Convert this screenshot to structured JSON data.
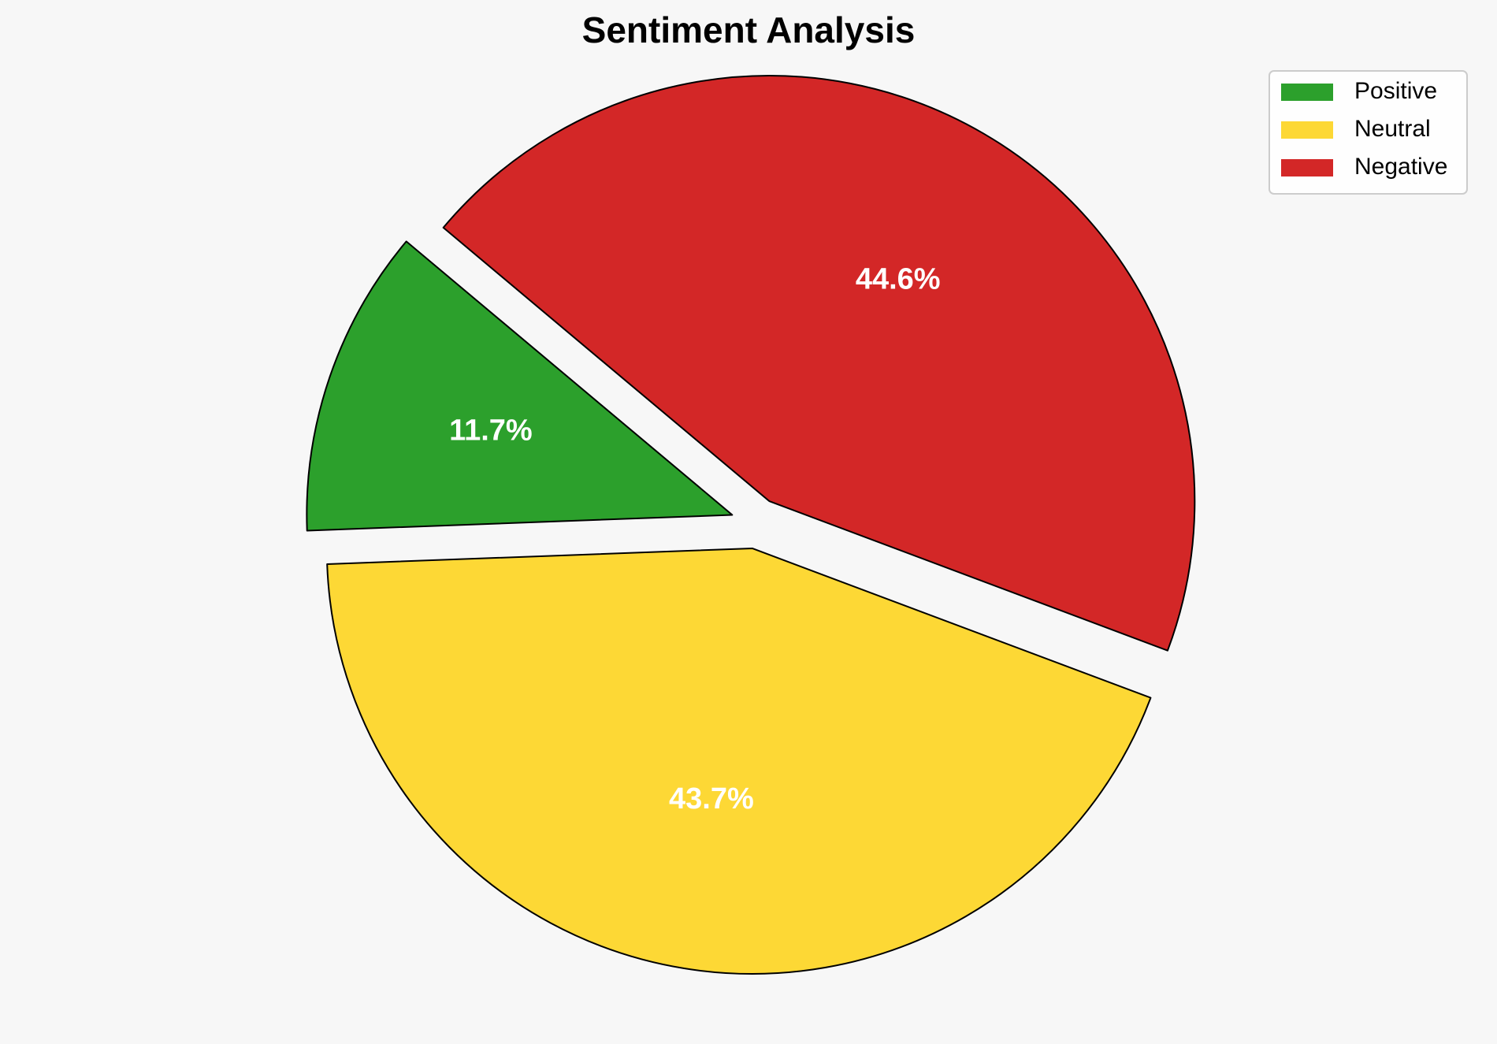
{
  "chart_data": {
    "type": "pie",
    "title": "Sentiment Analysis",
    "categories": [
      "Positive",
      "Neutral",
      "Negative"
    ],
    "values": [
      11.7,
      43.7,
      44.6
    ],
    "value_labels": [
      "11.7%",
      "43.7%",
      "44.6%"
    ],
    "colors": [
      "#2ca02c",
      "#fdd835",
      "#d32727"
    ],
    "exploded": true,
    "start_angle": 140,
    "direction": "counterclockwise",
    "legend_position": "top-right"
  }
}
